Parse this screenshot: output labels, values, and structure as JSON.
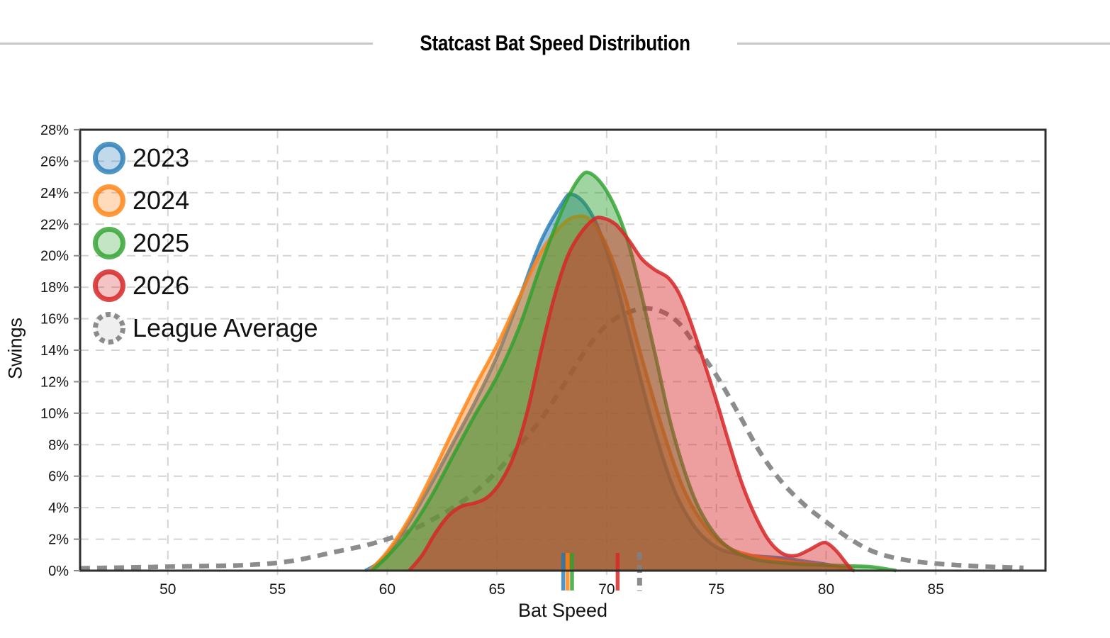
{
  "page": {
    "title": "Statcast Bat Speed Distribution"
  },
  "chart_data": {
    "type": "area",
    "title": "Statcast Bat Speed Distribution",
    "xlabel": "Bat Speed",
    "ylabel": "Swings",
    "x_domain": [
      46,
      90
    ],
    "y_domain": [
      0,
      28
    ],
    "grid": true,
    "legend_position": "top-left",
    "x_ticks": [
      {
        "v": 50,
        "label": "50"
      },
      {
        "v": 55,
        "label": "55"
      },
      {
        "v": 60,
        "label": "60"
      },
      {
        "v": 65,
        "label": "65"
      },
      {
        "v": 70,
        "label": "70"
      },
      {
        "v": 75,
        "label": "75"
      },
      {
        "v": 80,
        "label": "80"
      },
      {
        "v": 85,
        "label": "85"
      }
    ],
    "y_ticks": [
      {
        "v": 0,
        "label": "0%"
      },
      {
        "v": 2,
        "label": "2%"
      },
      {
        "v": 4,
        "label": "4%"
      },
      {
        "v": 6,
        "label": "6%"
      },
      {
        "v": 8,
        "label": "8%"
      },
      {
        "v": 10,
        "label": "10%"
      },
      {
        "v": 12,
        "label": "12%"
      },
      {
        "v": 14,
        "label": "14%"
      },
      {
        "v": 16,
        "label": "16%"
      },
      {
        "v": 18,
        "label": "18%"
      },
      {
        "v": 20,
        "label": "20%"
      },
      {
        "v": 22,
        "label": "22%"
      },
      {
        "v": 24,
        "label": "24%"
      },
      {
        "v": 26,
        "label": "26%"
      },
      {
        "v": 28,
        "label": "28%"
      }
    ],
    "series": [
      {
        "name": "2023",
        "type": "density-area",
        "dashed": false,
        "stroke": "rgba(31,119,180,0.78)",
        "fill": "rgba(31,119,180,0.45)",
        "legend_fill": "rgba(31,119,180,0.28)",
        "mean_marker": 68.02,
        "points": [
          [
            59,
            0
          ],
          [
            59.6,
            0.5
          ],
          [
            60.3,
            1.6
          ],
          [
            61,
            3.1
          ],
          [
            62,
            5.5
          ],
          [
            63,
            8.1
          ],
          [
            64,
            10.7
          ],
          [
            65,
            13.6
          ],
          [
            66,
            17.2
          ],
          [
            67,
            20.9
          ],
          [
            68,
            23.4
          ],
          [
            68.4,
            23.9
          ],
          [
            69,
            23.3
          ],
          [
            69.6,
            21.8
          ],
          [
            70.3,
            19.0
          ],
          [
            71,
            15.2
          ],
          [
            72,
            9.8
          ],
          [
            73,
            5.4
          ],
          [
            74,
            2.8
          ],
          [
            75,
            1.5
          ],
          [
            76,
            1.05
          ],
          [
            77,
            0.9
          ],
          [
            78,
            0.8
          ],
          [
            79,
            0.6
          ],
          [
            80,
            0.4
          ],
          [
            80.8,
            0.15
          ],
          [
            81.3,
            0
          ]
        ]
      },
      {
        "name": "2024",
        "type": "density-area",
        "dashed": false,
        "stroke": "rgba(255,127,14,0.8)",
        "fill": "rgba(255,127,14,0.45)",
        "legend_fill": "rgba(255,127,14,0.28)",
        "mean_marker": 68.22,
        "points": [
          [
            59.2,
            0
          ],
          [
            60,
            1.2
          ],
          [
            61,
            3.3
          ],
          [
            62,
            6.0
          ],
          [
            63,
            8.9
          ],
          [
            64,
            11.7
          ],
          [
            65,
            14.3
          ],
          [
            66,
            17.3
          ],
          [
            67,
            20.2
          ],
          [
            68,
            22.0
          ],
          [
            68.7,
            22.5
          ],
          [
            69.3,
            22.2
          ],
          [
            70,
            20.6
          ],
          [
            70.8,
            17.6
          ],
          [
            71.5,
            14.0
          ],
          [
            72.5,
            9.2
          ],
          [
            73.5,
            5.2
          ],
          [
            74.5,
            2.8
          ],
          [
            75.5,
            1.5
          ],
          [
            76.5,
            1.0
          ],
          [
            77.5,
            0.75
          ],
          [
            78.5,
            0.55
          ],
          [
            79.5,
            0.4
          ],
          [
            80.5,
            0.25
          ],
          [
            81.3,
            0
          ]
        ]
      },
      {
        "name": "2025",
        "type": "density-area",
        "dashed": false,
        "stroke": "rgba(44,160,44,0.8)",
        "fill": "rgba(44,160,44,0.45)",
        "legend_fill": "rgba(44,160,44,0.28)",
        "mean_marker": 68.42,
        "points": [
          [
            59.3,
            0
          ],
          [
            60,
            0.9
          ],
          [
            61,
            2.5
          ],
          [
            62,
            4.7
          ],
          [
            63,
            7.3
          ],
          [
            64,
            9.9
          ],
          [
            65,
            12.3
          ],
          [
            66,
            15.4
          ],
          [
            67,
            19.4
          ],
          [
            68,
            23.0
          ],
          [
            68.8,
            25.0
          ],
          [
            69.3,
            25.2
          ],
          [
            70,
            24.1
          ],
          [
            70.7,
            22.0
          ],
          [
            71.3,
            19.2
          ],
          [
            72.2,
            13.8
          ],
          [
            73,
            8.9
          ],
          [
            74,
            4.6
          ],
          [
            75,
            2.2
          ],
          [
            76,
            1.1
          ],
          [
            77,
            0.65
          ],
          [
            78,
            0.5
          ],
          [
            79,
            0.4
          ],
          [
            80,
            0.35
          ],
          [
            81,
            0.3
          ],
          [
            82,
            0.25
          ],
          [
            83,
            0.05
          ],
          [
            83.2,
            0
          ]
        ]
      },
      {
        "name": "2026",
        "type": "density-area",
        "dashed": false,
        "stroke": "rgba(214,39,40,0.85)",
        "fill": "rgba(214,39,40,0.45)",
        "legend_fill": "rgba(214,39,40,0.28)",
        "mean_marker": 70.5,
        "points": [
          [
            61,
            0
          ],
          [
            61.6,
            1.0
          ],
          [
            62.2,
            2.4
          ],
          [
            62.8,
            3.5
          ],
          [
            63.4,
            4.1
          ],
          [
            64,
            4.3
          ],
          [
            64.6,
            4.7
          ],
          [
            65.2,
            5.7
          ],
          [
            65.8,
            7.4
          ],
          [
            66.4,
            10.2
          ],
          [
            67,
            13.9
          ],
          [
            67.6,
            17.3
          ],
          [
            68.2,
            19.9
          ],
          [
            68.8,
            21.4
          ],
          [
            69.4,
            22.3
          ],
          [
            69.8,
            22.4
          ],
          [
            70.4,
            22.0
          ],
          [
            71,
            21.0
          ],
          [
            71.6,
            19.8
          ],
          [
            72.2,
            19.1
          ],
          [
            72.8,
            18.6
          ],
          [
            73.3,
            17.6
          ],
          [
            73.8,
            15.9
          ],
          [
            74.4,
            13.4
          ],
          [
            75,
            10.8
          ],
          [
            75.6,
            8.0
          ],
          [
            76.2,
            5.4
          ],
          [
            76.8,
            3.4
          ],
          [
            77.4,
            1.9
          ],
          [
            78,
            1.1
          ],
          [
            78.6,
            0.95
          ],
          [
            79.2,
            1.3
          ],
          [
            79.8,
            1.75
          ],
          [
            80.1,
            1.7
          ],
          [
            80.5,
            1.2
          ],
          [
            80.9,
            0.5
          ],
          [
            81.2,
            0
          ]
        ]
      },
      {
        "name": "League Average",
        "type": "density-line",
        "dashed": true,
        "stroke": "rgba(128,128,128,0.9)",
        "fill": "none",
        "legend_fill": "#efefef",
        "mean_marker": 71.5,
        "points": [
          [
            46,
            0.15
          ],
          [
            48,
            0.2
          ],
          [
            50,
            0.25
          ],
          [
            52,
            0.3
          ],
          [
            53.5,
            0.35
          ],
          [
            55,
            0.5
          ],
          [
            56,
            0.7
          ],
          [
            57,
            1.0
          ],
          [
            58,
            1.3
          ],
          [
            59,
            1.6
          ],
          [
            60,
            2.0
          ],
          [
            61,
            2.5
          ],
          [
            62,
            3.2
          ],
          [
            63,
            4.0
          ],
          [
            64,
            5.0
          ],
          [
            65,
            6.3
          ],
          [
            66,
            7.9
          ],
          [
            67,
            9.6
          ],
          [
            68,
            11.7
          ],
          [
            69,
            13.9
          ],
          [
            70,
            15.6
          ],
          [
            71,
            16.4
          ],
          [
            71.8,
            16.65
          ],
          [
            72.6,
            16.4
          ],
          [
            73.3,
            15.7
          ],
          [
            74,
            14.4
          ],
          [
            75,
            12.4
          ],
          [
            76,
            10.0
          ],
          [
            77,
            7.5
          ],
          [
            78,
            5.6
          ],
          [
            79,
            4.2
          ],
          [
            80,
            3.1
          ],
          [
            81,
            2.1
          ],
          [
            82,
            1.3
          ],
          [
            83,
            0.85
          ],
          [
            84,
            0.6
          ],
          [
            85,
            0.45
          ],
          [
            86,
            0.35
          ],
          [
            87,
            0.27
          ],
          [
            88,
            0.22
          ],
          [
            89,
            0.18
          ]
        ]
      }
    ],
    "colors": {
      "blue": "#1f77b4",
      "orange": "#ff7f0e",
      "green": "#2ca02c",
      "red": "#d62728",
      "gray": "#808080",
      "gridline": "#d4d4d4",
      "plot_border": "#2e2e2e",
      "title_rule": "#c8c8c8"
    }
  }
}
